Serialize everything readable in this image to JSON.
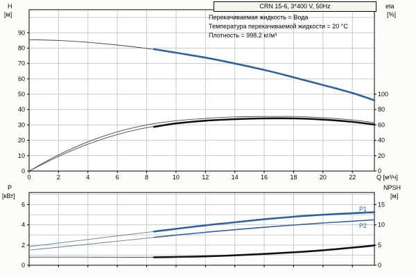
{
  "title_box": {
    "text": "CRN 15-6, 3*400 V, 50Hz"
  },
  "annotations": [
    "Перекачиваемая жидкость = Вода",
    "Температура перекачиваемой жидкости = 20 °C",
    "Плотность = 998.2 кг/м³"
  ],
  "axis_labels": {
    "top_left_title": "H",
    "top_left_unit": "[м]",
    "top_right_title": "eta",
    "top_right_unit": "[%]",
    "x_title": "Q [м³/ч]",
    "bottom_left_title": "P",
    "bottom_left_unit": "[кВт]",
    "bottom_right_title": "NPSH",
    "bottom_right_unit": "[м]"
  },
  "curve_labels": {
    "p1": "P1",
    "p2": "P2"
  },
  "colors": {
    "curve_blue": "#2e619c",
    "curve_thin_blue": "#5b7a99",
    "curve_black": "#111111",
    "curve_thin_dark": "#3f444a",
    "grid": "#c9c9c9",
    "axis": "#000000",
    "background": "#ffffff",
    "title_box_bg": "#f5f5f0"
  },
  "chart_data": [
    {
      "type": "line",
      "title": "CRN 15-6, 3*400 V, 50Hz",
      "xlabel": "Q [м³/ч]",
      "ylabel": "H [м]",
      "y2label": "eta [%]",
      "xlim": [
        0,
        23.5
      ],
      "ylim": [
        0,
        105
      ],
      "x_ticks": [
        0,
        2,
        4,
        6,
        8,
        10,
        12,
        14,
        16,
        18,
        20,
        22
      ],
      "x_tick_labels_visible": true,
      "y_ticks": [
        0,
        10,
        20,
        30,
        40,
        50,
        60,
        70,
        80,
        90
      ],
      "y_grid": [
        10,
        20,
        30,
        40,
        50,
        60,
        70,
        80,
        90,
        100
      ],
      "y2_ticks": [
        0,
        20,
        40,
        60,
        80,
        100
      ],
      "y2_to_y_scale": 0.5,
      "series": [
        {
          "name": "H",
          "axis": "y",
          "weight": "thin",
          "color": "curve_thin_dark",
          "x": [
            0,
            2,
            4,
            6,
            8,
            10,
            12,
            14,
            16,
            18,
            20,
            22,
            23.5
          ],
          "y": [
            85.5,
            85,
            83.8,
            82,
            79.8,
            77,
            73.8,
            70,
            65.8,
            61,
            56,
            50.8,
            46
          ]
        },
        {
          "name": "H-duty",
          "axis": "y",
          "weight": "bold",
          "color": "curve_blue",
          "x": [
            8.5,
            10,
            12,
            14,
            16,
            18,
            20,
            22,
            23.5
          ],
          "y": [
            79.3,
            77,
            73.8,
            70,
            65.8,
            61,
            56,
            50.8,
            46
          ]
        },
        {
          "name": "eta-max",
          "axis": "y2",
          "weight": "thin",
          "color": "curve_thin_dark",
          "x": [
            0,
            2,
            4,
            6,
            8,
            10,
            12,
            14,
            16,
            18,
            20,
            22,
            23.5
          ],
          "y": [
            0,
            21,
            38,
            51,
            60,
            65.5,
            68.5,
            70.5,
            71,
            71,
            69.5,
            66.5,
            63
          ]
        },
        {
          "name": "eta-min",
          "axis": "y2",
          "weight": "thin",
          "color": "curve_thin_dark",
          "x": [
            0,
            2,
            4,
            6,
            8,
            10,
            12,
            14,
            16,
            18,
            20,
            22,
            23.5
          ],
          "y": [
            0,
            19,
            35,
            47.5,
            56.5,
            62,
            65.5,
            67.5,
            68.5,
            68.5,
            67,
            64,
            60.5
          ]
        },
        {
          "name": "eta-duty",
          "axis": "y2",
          "weight": "bold",
          "color": "curve_black",
          "x": [
            8.5,
            10,
            12,
            14,
            16,
            18,
            20,
            22,
            23.5
          ],
          "y": [
            57.5,
            62,
            65.5,
            67.5,
            68.5,
            68.5,
            67,
            64,
            60.5
          ]
        }
      ]
    },
    {
      "type": "line",
      "ylabel": "P [кВт]",
      "y2label": "NPSH [м]",
      "xlim": [
        0,
        23.5
      ],
      "ylim": [
        0,
        7.2
      ],
      "x_ticks": [
        0,
        2,
        4,
        6,
        8,
        10,
        12,
        14,
        16,
        18,
        20,
        22
      ],
      "x_tick_labels_visible": false,
      "y_ticks": [
        0,
        2,
        4,
        6
      ],
      "y_grid": [
        1,
        2,
        3,
        4,
        5,
        6,
        7
      ],
      "y2_ticks": [
        0,
        5,
        10,
        15
      ],
      "y2_to_y_scale": 0.4,
      "series": [
        {
          "name": "P1",
          "axis": "y",
          "weight": "thin",
          "color": "curve_thin_blue",
          "x": [
            0,
            2,
            4,
            6,
            8,
            10,
            12,
            14,
            16,
            18,
            20,
            22,
            23.5
          ],
          "y": [
            1.85,
            2.2,
            2.55,
            2.9,
            3.25,
            3.6,
            3.95,
            4.25,
            4.55,
            4.8,
            5.0,
            5.15,
            5.25
          ]
        },
        {
          "name": "P1-duty",
          "axis": "y",
          "weight": "bold",
          "color": "curve_blue",
          "x": [
            8.5,
            10,
            12,
            14,
            16,
            18,
            20,
            22,
            23.5
          ],
          "y": [
            3.34,
            3.6,
            3.95,
            4.25,
            4.55,
            4.8,
            5.0,
            5.15,
            5.25
          ]
        },
        {
          "name": "P2",
          "axis": "y",
          "weight": "thin",
          "color": "curve_thin_blue",
          "x": [
            0,
            2,
            4,
            6,
            8,
            10,
            12,
            14,
            16,
            18,
            20,
            22,
            23.5
          ],
          "y": [
            1.5,
            1.78,
            2.08,
            2.38,
            2.68,
            2.98,
            3.26,
            3.52,
            3.76,
            3.98,
            4.18,
            4.36,
            4.5
          ]
        },
        {
          "name": "P2-duty",
          "axis": "y",
          "weight": "medium",
          "color": "curve_blue",
          "x": [
            8.5,
            10,
            12,
            14,
            16,
            18,
            20,
            22,
            23.5
          ],
          "y": [
            2.76,
            2.98,
            3.26,
            3.52,
            3.76,
            3.98,
            4.18,
            4.36,
            4.5
          ]
        },
        {
          "name": "NPSH",
          "axis": "y2",
          "weight": "thin",
          "color": "curve_thin_dark",
          "x": [
            0,
            2,
            4,
            6,
            8.5
          ],
          "y": [
            2.0,
            2.0,
            2.0,
            1.98,
            1.95
          ]
        },
        {
          "name": "NPSH-duty",
          "axis": "y2",
          "weight": "bold",
          "color": "curve_black",
          "x": [
            8.5,
            10,
            12,
            14,
            16,
            18,
            20,
            22,
            23.5
          ],
          "y": [
            1.95,
            2.05,
            2.2,
            2.45,
            2.8,
            3.2,
            3.7,
            4.35,
            4.9
          ]
        }
      ]
    }
  ]
}
